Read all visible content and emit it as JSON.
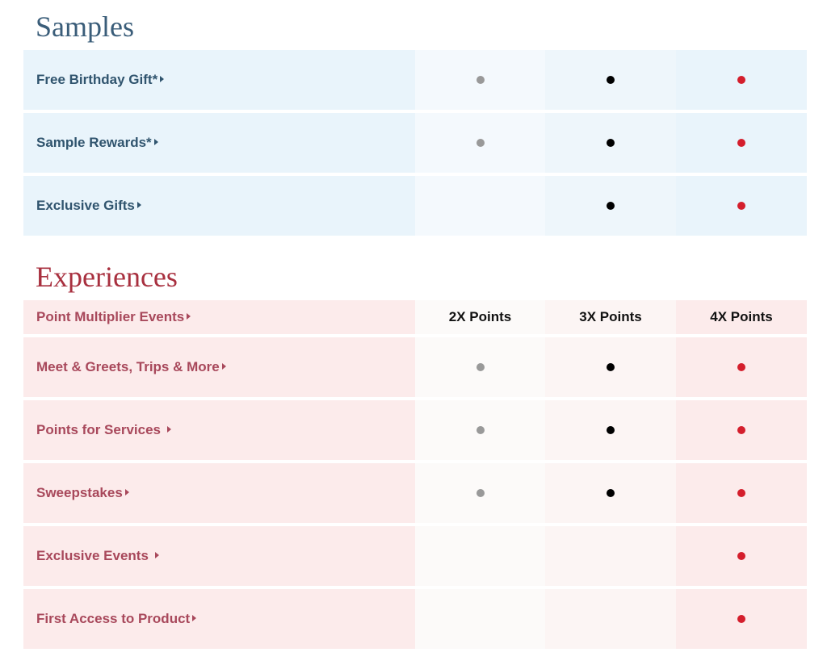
{
  "colors": {
    "tier1_dot": "#999999",
    "tier2_dot": "#000000",
    "tier3_dot": "#d41e2c",
    "samples_accent": "#3a5d79",
    "experiences_accent": "#a8303f"
  },
  "samples": {
    "title": "Samples",
    "rows": [
      {
        "label": "Free Birthday Gift*",
        "tiers": [
          true,
          true,
          true
        ]
      },
      {
        "label": "Sample Rewards*",
        "tiers": [
          true,
          true,
          true
        ]
      },
      {
        "label": "Exclusive Gifts",
        "tiers": [
          false,
          true,
          true
        ]
      }
    ]
  },
  "experiences": {
    "title": "Experiences",
    "header": {
      "label": "Point Multiplier Events",
      "tiers": [
        "2X Points",
        "3X Points",
        "4X Points"
      ]
    },
    "rows": [
      {
        "label": "Meet & Greets, Trips & More",
        "tiers": [
          true,
          true,
          true
        ]
      },
      {
        "label": "Points for Services",
        "tiers": [
          true,
          true,
          true
        ]
      },
      {
        "label": "Sweepstakes",
        "tiers": [
          true,
          true,
          true
        ]
      },
      {
        "label": "Exclusive Events",
        "tiers": [
          false,
          false,
          true
        ]
      },
      {
        "label": "First Access to Product",
        "tiers": [
          false,
          false,
          true
        ]
      }
    ]
  }
}
